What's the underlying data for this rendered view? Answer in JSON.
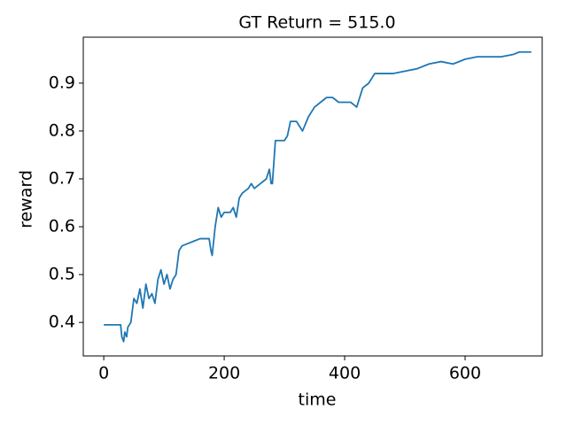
{
  "chart_data": {
    "type": "line",
    "title": "GT Return = 515.0",
    "x_label": "time",
    "y_label": "reward",
    "series": [
      {
        "color": "#1f77b4",
        "x": [
          0,
          10,
          20,
          28,
          30,
          33,
          35,
          38,
          40,
          45,
          50,
          55,
          60,
          65,
          70,
          75,
          80,
          85,
          90,
          95,
          100,
          105,
          110,
          115,
          120,
          125,
          130,
          140,
          150,
          160,
          175,
          178,
          180,
          185,
          190,
          195,
          200,
          210,
          215,
          220,
          225,
          230,
          240,
          245,
          250,
          260,
          270,
          275,
          278,
          280,
          285,
          290,
          300,
          305,
          310,
          320,
          330,
          340,
          350,
          360,
          370,
          380,
          390,
          400,
          410,
          420,
          425,
          430,
          440,
          450,
          460,
          480,
          500,
          520,
          540,
          560,
          580,
          600,
          620,
          640,
          660,
          680,
          690,
          710
        ],
        "values": [
          0.395,
          0.395,
          0.395,
          0.395,
          0.37,
          0.36,
          0.38,
          0.37,
          0.39,
          0.4,
          0.45,
          0.44,
          0.47,
          0.43,
          0.48,
          0.45,
          0.46,
          0.44,
          0.49,
          0.51,
          0.48,
          0.5,
          0.47,
          0.49,
          0.5,
          0.55,
          0.56,
          0.565,
          0.57,
          0.575,
          0.575,
          0.55,
          0.54,
          0.6,
          0.64,
          0.62,
          0.63,
          0.63,
          0.64,
          0.62,
          0.66,
          0.67,
          0.68,
          0.69,
          0.68,
          0.69,
          0.7,
          0.72,
          0.69,
          0.69,
          0.78,
          0.78,
          0.78,
          0.79,
          0.82,
          0.82,
          0.8,
          0.83,
          0.85,
          0.86,
          0.87,
          0.87,
          0.86,
          0.86,
          0.86,
          0.85,
          0.87,
          0.89,
          0.9,
          0.92,
          0.92,
          0.92,
          0.925,
          0.93,
          0.94,
          0.945,
          0.94,
          0.95,
          0.955,
          0.955,
          0.955,
          0.96,
          0.965,
          0.965
        ]
      }
    ],
    "xlim": [
      -34,
      728
    ],
    "ylim": [
      0.33,
      0.996
    ],
    "xticks": [
      0,
      200,
      400,
      600
    ],
    "yticks": [
      0.4,
      0.5,
      0.6,
      0.7,
      0.8,
      0.9
    ]
  }
}
